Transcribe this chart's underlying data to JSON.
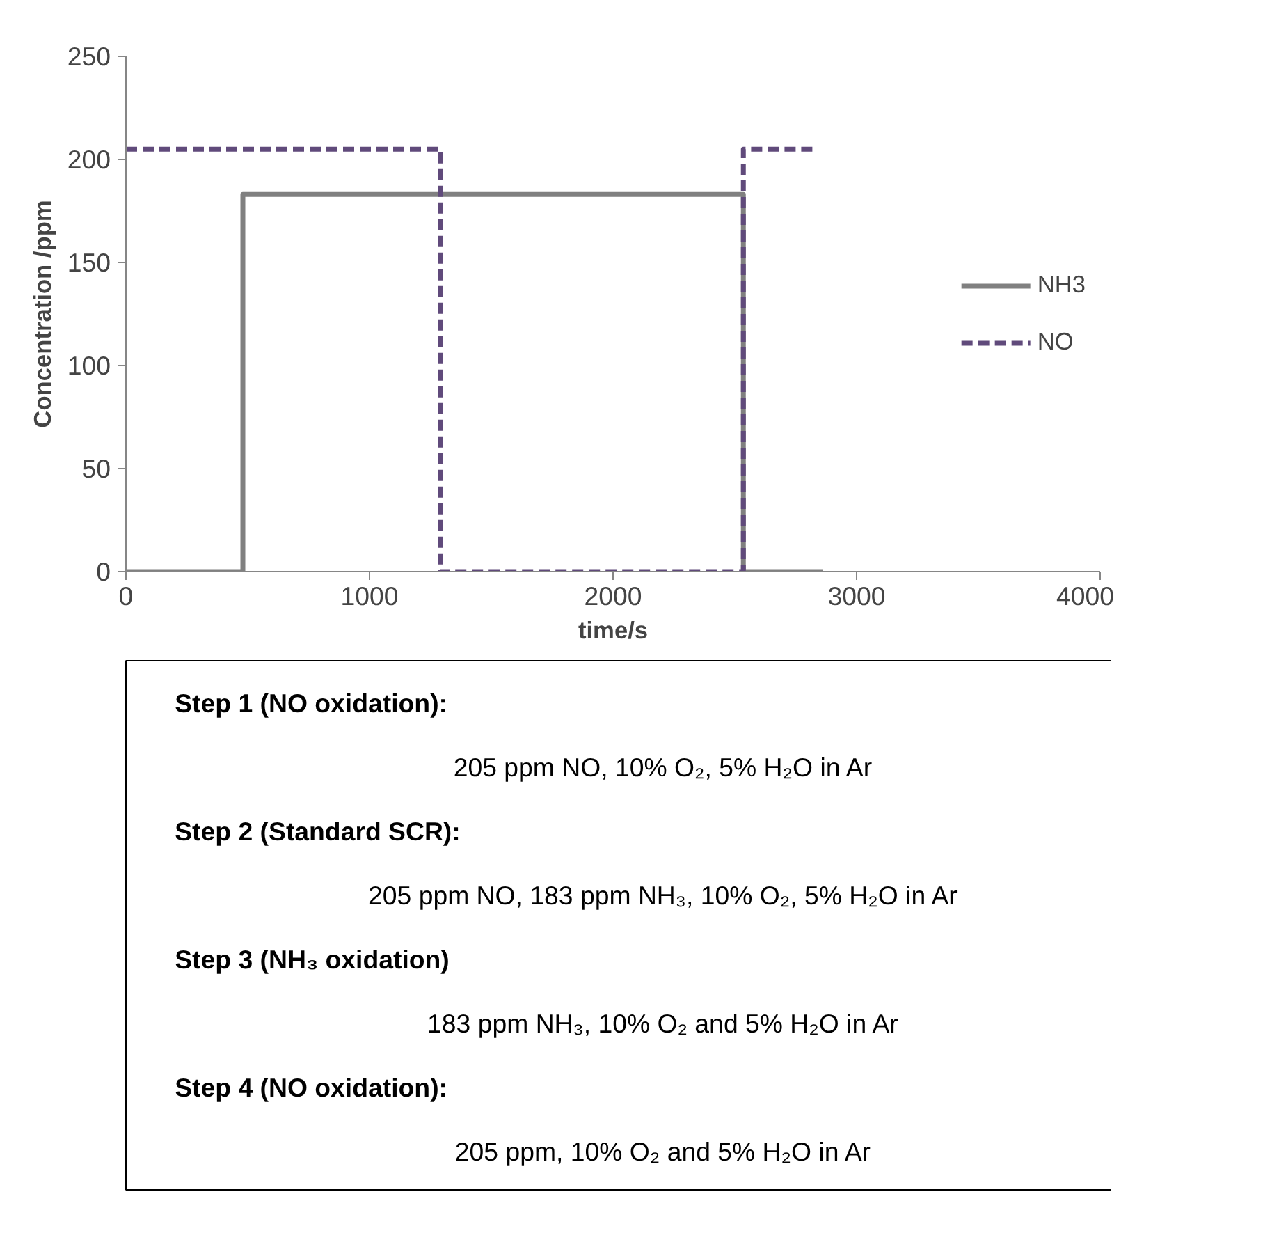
{
  "chart_data": {
    "type": "line",
    "xlabel": "time/s",
    "ylabel": "Concentration /ppm",
    "xlim": [
      0,
      4000
    ],
    "xticks": [
      0,
      1000,
      2000,
      3000,
      4000
    ],
    "ylim": [
      0,
      250
    ],
    "yticks": [
      0,
      50,
      100,
      150,
      200,
      250
    ],
    "grid": false,
    "legend": "right",
    "marker": "none",
    "series": [
      {
        "name": "NH3",
        "color": "#808080",
        "line_style": "solid",
        "x": [
          0,
          480,
          480,
          2535,
          2535,
          2860
        ],
        "values": [
          0,
          0,
          183,
          183,
          0,
          0
        ]
      },
      {
        "name": "NO",
        "color": "#604a7b",
        "line_style": "dashed",
        "x": [
          0,
          1290,
          1290,
          2535,
          2535,
          2830
        ],
        "values": [
          205,
          205,
          0,
          0,
          205,
          205
        ]
      }
    ],
    "annotations": [
      "Step 1 (NO oxidation):",
      "205 ppm NO, 10% O₂, 5% H₂O in Ar",
      "Step 2 (Standard SCR):",
      "205 ppm NO, 183 ppm NH₃, 10% O₂, 5% H₂O in Ar",
      "Step 3 (NH₃ oxidation)",
      "183 ppm NH₃, 10% O₂ and 5% H₂O in Ar",
      "Step 4 (NO oxidation):",
      "205 ppm, 10% O₂ and 5% H₂O in Ar"
    ]
  }
}
